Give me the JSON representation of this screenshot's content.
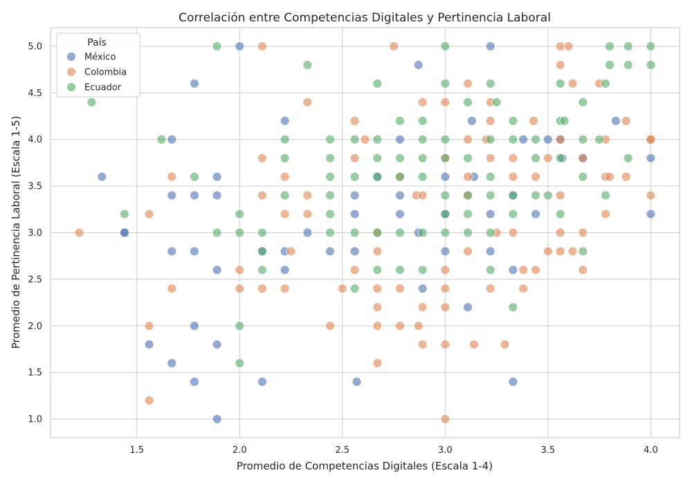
{
  "chart_data": {
    "type": "scatter",
    "title": "Correlación entre Competencias Digitales y Pertinencia Laboral",
    "xlabel": "Promedio de Competencias Digitales (Escala 1-4)",
    "ylabel": "Promedio de Pertinencia Laboral (Escala 1-5)",
    "xlim": [
      1.08,
      4.14
    ],
    "ylim": [
      0.8,
      5.2
    ],
    "x_ticks": [
      "1.5",
      "2.0",
      "2.5",
      "3.0",
      "3.5",
      "4.0"
    ],
    "y_ticks": [
      "1.0",
      "1.5",
      "2.0",
      "2.5",
      "3.0",
      "3.5",
      "4.0",
      "4.5",
      "5.0"
    ],
    "grid": true,
    "legend": {
      "title": "País",
      "position": "top-left"
    },
    "series": [
      {
        "name": "México",
        "color": "#4c72b0",
        "points": [
          [
            1.33,
            3.6
          ],
          [
            1.44,
            3.0
          ],
          [
            1.44,
            3.0
          ],
          [
            1.56,
            1.8
          ],
          [
            1.67,
            4.0
          ],
          [
            1.67,
            3.4
          ],
          [
            1.67,
            2.8
          ],
          [
            1.67,
            1.6
          ],
          [
            1.78,
            4.6
          ],
          [
            1.78,
            3.4
          ],
          [
            1.78,
            2.8
          ],
          [
            1.78,
            2.0
          ],
          [
            1.78,
            1.4
          ],
          [
            1.89,
            3.6
          ],
          [
            1.89,
            3.4
          ],
          [
            1.89,
            2.6
          ],
          [
            1.89,
            1.8
          ],
          [
            1.89,
            1.0
          ],
          [
            2.0,
            5.0
          ],
          [
            2.11,
            2.8
          ],
          [
            2.11,
            1.4
          ],
          [
            2.22,
            4.2
          ],
          [
            2.22,
            2.8
          ],
          [
            2.22,
            2.6
          ],
          [
            2.33,
            3.0
          ],
          [
            2.44,
            2.8
          ],
          [
            2.56,
            3.4
          ],
          [
            2.56,
            3.2
          ],
          [
            2.56,
            2.8
          ],
          [
            2.57,
            1.4
          ],
          [
            2.67,
            3.6
          ],
          [
            2.78,
            4.0
          ],
          [
            2.78,
            3.4
          ],
          [
            2.78,
            3.2
          ],
          [
            2.87,
            4.8
          ],
          [
            2.87,
            3.0
          ],
          [
            2.89,
            2.4
          ],
          [
            3.0,
            3.6
          ],
          [
            3.0,
            3.2
          ],
          [
            3.0,
            2.8
          ],
          [
            3.11,
            2.2
          ],
          [
            3.13,
            4.2
          ],
          [
            3.14,
            3.6
          ],
          [
            3.22,
            5.0
          ],
          [
            3.22,
            3.2
          ],
          [
            3.22,
            2.8
          ],
          [
            3.33,
            3.4
          ],
          [
            3.33,
            2.6
          ],
          [
            3.33,
            1.4
          ],
          [
            3.38,
            4.0
          ],
          [
            3.44,
            3.2
          ],
          [
            3.5,
            4.0
          ],
          [
            3.56,
            4.0
          ],
          [
            3.57,
            3.8
          ],
          [
            3.67,
            3.8
          ],
          [
            3.83,
            4.2
          ],
          [
            4.0,
            3.8
          ],
          [
            4.0,
            3.2
          ]
        ]
      },
      {
        "name": "Colombia",
        "color": "#dd8452",
        "points": [
          [
            1.22,
            3.0
          ],
          [
            1.56,
            3.2
          ],
          [
            1.56,
            2.0
          ],
          [
            1.56,
            1.2
          ],
          [
            1.67,
            3.6
          ],
          [
            1.67,
            2.4
          ],
          [
            2.0,
            2.6
          ],
          [
            2.0,
            2.4
          ],
          [
            2.11,
            5.0
          ],
          [
            2.11,
            3.8
          ],
          [
            2.11,
            3.4
          ],
          [
            2.11,
            2.4
          ],
          [
            2.22,
            3.6
          ],
          [
            2.22,
            3.2
          ],
          [
            2.22,
            2.4
          ],
          [
            2.25,
            2.8
          ],
          [
            2.33,
            4.4
          ],
          [
            2.33,
            3.4
          ],
          [
            2.33,
            3.2
          ],
          [
            2.44,
            2.0
          ],
          [
            2.5,
            2.4
          ],
          [
            2.56,
            4.2
          ],
          [
            2.56,
            3.8
          ],
          [
            2.56,
            2.6
          ],
          [
            2.61,
            4.0
          ],
          [
            2.67,
            3.0
          ],
          [
            2.67,
            2.8
          ],
          [
            2.67,
            2.4
          ],
          [
            2.67,
            2.2
          ],
          [
            2.67,
            2.0
          ],
          [
            2.67,
            1.6
          ],
          [
            2.75,
            5.0
          ],
          [
            2.78,
            3.6
          ],
          [
            2.78,
            2.4
          ],
          [
            2.78,
            2.0
          ],
          [
            2.86,
            3.4
          ],
          [
            2.87,
            2.0
          ],
          [
            2.89,
            4.4
          ],
          [
            2.89,
            3.4
          ],
          [
            2.89,
            2.2
          ],
          [
            2.89,
            1.8
          ],
          [
            3.0,
            4.4
          ],
          [
            3.0,
            3.8
          ],
          [
            3.0,
            2.6
          ],
          [
            3.0,
            2.4
          ],
          [
            3.0,
            2.2
          ],
          [
            3.0,
            1.8
          ],
          [
            3.0,
            1.0
          ],
          [
            3.11,
            4.6
          ],
          [
            3.11,
            4.0
          ],
          [
            3.11,
            3.6
          ],
          [
            3.11,
            3.4
          ],
          [
            3.11,
            2.8
          ],
          [
            3.14,
            1.8
          ],
          [
            3.2,
            4.0
          ],
          [
            3.22,
            4.4
          ],
          [
            3.22,
            4.2
          ],
          [
            3.22,
            3.8
          ],
          [
            3.22,
            2.4
          ],
          [
            3.25,
            3.0
          ],
          [
            3.29,
            1.8
          ],
          [
            3.33,
            3.8
          ],
          [
            3.33,
            3.6
          ],
          [
            3.33,
            3.0
          ],
          [
            3.38,
            2.6
          ],
          [
            3.38,
            2.4
          ],
          [
            3.43,
            4.2
          ],
          [
            3.44,
            3.6
          ],
          [
            3.44,
            2.6
          ],
          [
            3.5,
            3.8
          ],
          [
            3.5,
            2.8
          ],
          [
            3.56,
            5.0
          ],
          [
            3.56,
            4.8
          ],
          [
            3.56,
            4.0
          ],
          [
            3.56,
            3.4
          ],
          [
            3.56,
            3.0
          ],
          [
            3.56,
            2.8
          ],
          [
            3.6,
            5.0
          ],
          [
            3.62,
            4.6
          ],
          [
            3.62,
            2.8
          ],
          [
            3.67,
            3.8
          ],
          [
            3.67,
            3.0
          ],
          [
            3.67,
            2.6
          ],
          [
            3.75,
            4.6
          ],
          [
            3.78,
            4.0
          ],
          [
            3.78,
            3.6
          ],
          [
            3.78,
            3.2
          ],
          [
            3.8,
            3.6
          ],
          [
            3.88,
            4.2
          ],
          [
            3.88,
            3.6
          ],
          [
            4.0,
            4.0
          ],
          [
            4.0,
            4.0
          ],
          [
            4.0,
            3.4
          ]
        ]
      },
      {
        "name": "Ecuador",
        "color": "#55a868",
        "points": [
          [
            1.28,
            4.4
          ],
          [
            1.44,
            3.2
          ],
          [
            1.62,
            4.0
          ],
          [
            1.78,
            3.6
          ],
          [
            1.89,
            5.0
          ],
          [
            1.89,
            3.0
          ],
          [
            2.0,
            3.2
          ],
          [
            2.0,
            3.0
          ],
          [
            2.0,
            2.0
          ],
          [
            2.0,
            1.6
          ],
          [
            2.11,
            3.0
          ],
          [
            2.11,
            2.8
          ],
          [
            2.11,
            2.6
          ],
          [
            2.22,
            4.0
          ],
          [
            2.22,
            3.8
          ],
          [
            2.22,
            3.4
          ],
          [
            2.33,
            4.8
          ],
          [
            2.44,
            4.0
          ],
          [
            2.44,
            3.8
          ],
          [
            2.44,
            3.6
          ],
          [
            2.44,
            3.4
          ],
          [
            2.44,
            3.2
          ],
          [
            2.44,
            3.0
          ],
          [
            2.56,
            4.0
          ],
          [
            2.56,
            3.6
          ],
          [
            2.56,
            3.0
          ],
          [
            2.56,
            2.4
          ],
          [
            2.67,
            4.6
          ],
          [
            2.67,
            4.0
          ],
          [
            2.67,
            3.8
          ],
          [
            2.67,
            3.6
          ],
          [
            2.67,
            3.0
          ],
          [
            2.67,
            2.6
          ],
          [
            2.78,
            4.2
          ],
          [
            2.78,
            3.8
          ],
          [
            2.78,
            3.6
          ],
          [
            2.78,
            3.0
          ],
          [
            2.78,
            2.6
          ],
          [
            2.89,
            4.2
          ],
          [
            2.89,
            4.0
          ],
          [
            2.89,
            3.8
          ],
          [
            2.89,
            3.6
          ],
          [
            2.89,
            3.0
          ],
          [
            2.89,
            2.6
          ],
          [
            3.0,
            5.0
          ],
          [
            3.0,
            4.6
          ],
          [
            3.0,
            4.0
          ],
          [
            3.0,
            3.8
          ],
          [
            3.0,
            3.4
          ],
          [
            3.0,
            3.2
          ],
          [
            3.0,
            3.0
          ],
          [
            3.11,
            4.4
          ],
          [
            3.11,
            3.8
          ],
          [
            3.11,
            3.4
          ],
          [
            3.11,
            3.2
          ],
          [
            3.11,
            3.0
          ],
          [
            3.22,
            4.6
          ],
          [
            3.22,
            4.0
          ],
          [
            3.22,
            3.6
          ],
          [
            3.22,
            3.4
          ],
          [
            3.22,
            3.0
          ],
          [
            3.22,
            2.6
          ],
          [
            3.25,
            4.4
          ],
          [
            3.33,
            4.2
          ],
          [
            3.33,
            4.0
          ],
          [
            3.33,
            3.4
          ],
          [
            3.33,
            3.2
          ],
          [
            3.33,
            2.2
          ],
          [
            3.44,
            4.0
          ],
          [
            3.44,
            3.8
          ],
          [
            3.44,
            3.4
          ],
          [
            3.5,
            3.4
          ],
          [
            3.56,
            4.6
          ],
          [
            3.56,
            4.2
          ],
          [
            3.56,
            3.8
          ],
          [
            3.56,
            3.2
          ],
          [
            3.58,
            4.2
          ],
          [
            3.67,
            4.4
          ],
          [
            3.67,
            4.0
          ],
          [
            3.67,
            3.6
          ],
          [
            3.67,
            2.8
          ],
          [
            3.75,
            4.0
          ],
          [
            3.78,
            4.6
          ],
          [
            3.78,
            3.4
          ],
          [
            3.8,
            5.0
          ],
          [
            3.8,
            4.8
          ],
          [
            3.89,
            5.0
          ],
          [
            3.89,
            4.8
          ],
          [
            3.89,
            3.8
          ],
          [
            4.0,
            5.0
          ],
          [
            4.0,
            4.8
          ]
        ]
      }
    ]
  }
}
